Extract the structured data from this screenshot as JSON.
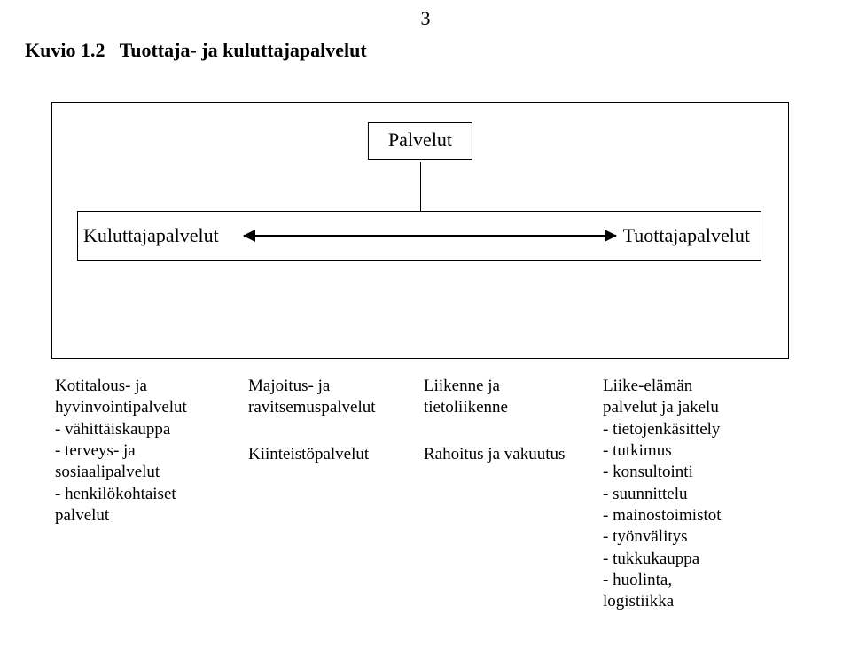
{
  "page_number": "3",
  "title_prefix": "Kuvio 1.2",
  "title_rest": "Tuottaja- ja kuluttajapalvelut",
  "diagram": {
    "type": "tree",
    "top_box": "Palvelut",
    "row_left": "Kuluttajapalvelut",
    "row_right": "Tuottajapalvelut",
    "colors": {
      "border": "#000000",
      "background": "#ffffff"
    }
  },
  "columns": {
    "col1": {
      "lines": [
        "Kotitalous- ja",
        "hyvinvointipalvelut",
        "- vähittäiskauppa",
        "- terveys- ja",
        "sosiaalipalvelut",
        "- henkilökohtaiset",
        "palvelut"
      ]
    },
    "col2": {
      "block1": [
        "Majoitus- ja",
        "ravitsemuspalvelut"
      ],
      "block2": [
        "Kiinteistöpalvelut"
      ]
    },
    "col3": {
      "block1": [
        "Liikenne ja",
        "tietoliikenne"
      ],
      "block2": [
        "Rahoitus ja vakuutus"
      ]
    },
    "col4": {
      "lines": [
        "Liike-elämän",
        "palvelut ja jakelu",
        "- tietojenkäsittely",
        "- tutkimus",
        "- konsultointi",
        "- suunnittelu",
        "- mainostoimistot",
        "- työnvälitys",
        "- tukkukauppa",
        "- huolinta,",
        "logistiikka"
      ]
    }
  }
}
